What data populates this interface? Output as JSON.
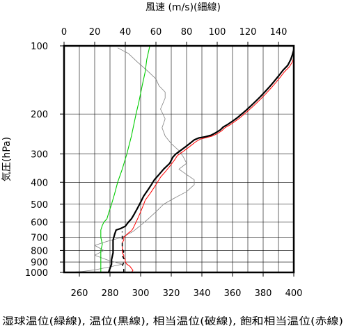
{
  "chart_data": {
    "type": "line",
    "top_axis_label": "風速 (m/s)(細線)",
    "left_axis_label": "気圧(hPa)",
    "bottom_caption": "湿球温位(緑線), 温位(黒線), 相当温位(破線), 飽和相当温位(赤線)",
    "temperature_axis": {
      "range": [
        250,
        400
      ],
      "ticks": [
        "260",
        "280",
        "300",
        "320",
        "340",
        "360",
        "380",
        "400"
      ],
      "tick_values": [
        260,
        280,
        300,
        320,
        340,
        360,
        380,
        400
      ]
    },
    "wind_axis": {
      "range": [
        0,
        150
      ],
      "ticks": [
        "0",
        "20",
        "40",
        "60",
        "80",
        "100",
        "120",
        "140"
      ],
      "tick_values": [
        0,
        20,
        40,
        60,
        80,
        100,
        120,
        140
      ]
    },
    "pressure_axis": {
      "scale": "log",
      "range": [
        1000,
        100
      ],
      "ticks": [
        "100",
        "200",
        "300",
        "400",
        "500",
        "600",
        "700",
        "800",
        "900",
        "1000"
      ],
      "tick_values": [
        100,
        200,
        300,
        400,
        500,
        600,
        700,
        800,
        900,
        1000
      ]
    },
    "grid": true,
    "series": [
      {
        "key": "wind_speed",
        "color": "#808080",
        "axis": "wind",
        "points": [
          [
            3,
            1000
          ],
          [
            12,
            990
          ],
          [
            20,
            975
          ],
          [
            30,
            945
          ],
          [
            38,
            920
          ],
          [
            28,
            880
          ],
          [
            20,
            840
          ],
          [
            26,
            800
          ],
          [
            20,
            760
          ],
          [
            28,
            730
          ],
          [
            38,
            700
          ],
          [
            45,
            660
          ],
          [
            50,
            620
          ],
          [
            55,
            580
          ],
          [
            60,
            540
          ],
          [
            65,
            500
          ],
          [
            72,
            470
          ],
          [
            80,
            440
          ],
          [
            85,
            410
          ],
          [
            85,
            390
          ],
          [
            80,
            370
          ],
          [
            75,
            350
          ],
          [
            80,
            330
          ],
          [
            78,
            310
          ],
          [
            75,
            290
          ],
          [
            70,
            270
          ],
          [
            66,
            250
          ],
          [
            64,
            230
          ],
          [
            66,
            210
          ],
          [
            63,
            190
          ],
          [
            66,
            170
          ],
          [
            66,
            160
          ],
          [
            62,
            150
          ],
          [
            60,
            140
          ],
          [
            55,
            130
          ],
          [
            48,
            118
          ],
          [
            42,
            108
          ],
          [
            35,
            102
          ]
        ]
      },
      {
        "key": "wet_bulb_potential_temperature",
        "color": "#00cc00",
        "axis": "temperature",
        "points": [
          [
            274,
            1000
          ],
          [
            274,
            950
          ],
          [
            274,
            900
          ],
          [
            274,
            850
          ],
          [
            274,
            800
          ],
          [
            275,
            750
          ],
          [
            274,
            700
          ],
          [
            274,
            650
          ],
          [
            275,
            620
          ],
          [
            276,
            600
          ],
          [
            278,
            580
          ],
          [
            279,
            550
          ],
          [
            281,
            500
          ],
          [
            283,
            450
          ],
          [
            285,
            400
          ],
          [
            288,
            350
          ],
          [
            291,
            300
          ],
          [
            294,
            250
          ],
          [
            297,
            200
          ],
          [
            299,
            175
          ],
          [
            301,
            150
          ],
          [
            303,
            130
          ],
          [
            304,
            115
          ],
          [
            306,
            100
          ]
        ]
      },
      {
        "key": "potential_temperature",
        "color": "#000000",
        "axis": "temperature",
        "points": [
          [
            279,
            1000
          ],
          [
            280,
            960
          ],
          [
            281,
            920
          ],
          [
            281,
            880
          ],
          [
            282,
            820
          ],
          [
            282,
            770
          ],
          [
            282,
            720
          ],
          [
            283,
            680
          ],
          [
            284,
            650
          ],
          [
            287,
            640
          ],
          [
            290,
            625
          ],
          [
            292,
            600
          ],
          [
            294,
            580
          ],
          [
            296,
            550
          ],
          [
            298,
            520
          ],
          [
            300,
            490
          ],
          [
            302,
            460
          ],
          [
            305,
            430
          ],
          [
            307,
            410
          ],
          [
            309,
            390
          ],
          [
            312,
            370
          ],
          [
            315,
            350
          ],
          [
            319,
            330
          ],
          [
            321,
            310
          ],
          [
            323,
            300
          ],
          [
            326,
            290
          ],
          [
            329,
            280
          ],
          [
            332,
            270
          ],
          [
            335,
            260
          ],
          [
            338,
            255
          ],
          [
            342,
            252
          ],
          [
            346,
            248
          ],
          [
            349,
            242
          ],
          [
            352,
            235
          ],
          [
            354,
            228
          ],
          [
            357,
            222
          ],
          [
            360,
            215
          ],
          [
            363,
            208
          ],
          [
            366,
            200
          ],
          [
            369,
            192
          ],
          [
            372,
            184
          ],
          [
            375,
            176
          ],
          [
            378,
            168
          ],
          [
            381,
            160
          ],
          [
            384,
            152
          ],
          [
            387,
            144
          ],
          [
            390,
            136
          ],
          [
            393,
            128
          ],
          [
            396,
            122
          ],
          [
            398,
            115
          ],
          [
            399,
            110
          ],
          [
            400,
            104
          ]
        ]
      },
      {
        "key": "equivalent_potential_temperature",
        "color": "#000000",
        "axis": "temperature",
        "dashed": true,
        "points": [
          [
            289,
            1000
          ],
          [
            289,
            970
          ],
          [
            288,
            940
          ],
          [
            289,
            900
          ],
          [
            289,
            870
          ],
          [
            288,
            840
          ],
          [
            289,
            810
          ],
          [
            288,
            790
          ],
          [
            288,
            760
          ],
          [
            288,
            740
          ],
          [
            288,
            720
          ],
          [
            288,
            700
          ],
          [
            288,
            680
          ],
          [
            288,
            660
          ]
        ]
      },
      {
        "key": "saturated_equivalent_potential_temperature",
        "color": "#ff0000",
        "axis": "temperature",
        "points": [
          [
            294,
            1000
          ],
          [
            295,
            980
          ],
          [
            294,
            960
          ],
          [
            293,
            940
          ],
          [
            291,
            920
          ],
          [
            290,
            900
          ],
          [
            290,
            880
          ],
          [
            289,
            860
          ],
          [
            289,
            840
          ],
          [
            288,
            820
          ],
          [
            288,
            800
          ],
          [
            288,
            780
          ],
          [
            288,
            760
          ],
          [
            288,
            740
          ],
          [
            289,
            720
          ],
          [
            289,
            700
          ],
          [
            290,
            690
          ],
          [
            291,
            680
          ],
          [
            292,
            670
          ],
          [
            294,
            655
          ],
          [
            295,
            640
          ],
          [
            296,
            620
          ],
          [
            297,
            600
          ],
          [
            298,
            580
          ],
          [
            299,
            560
          ],
          [
            300,
            540
          ],
          [
            301,
            520
          ],
          [
            302,
            500
          ],
          [
            303,
            480
          ],
          [
            305,
            460
          ],
          [
            307,
            440
          ],
          [
            309,
            420
          ],
          [
            311,
            400
          ],
          [
            313,
            380
          ],
          [
            316,
            360
          ],
          [
            319,
            340
          ],
          [
            322,
            320
          ],
          [
            324,
            305
          ],
          [
            327,
            295
          ],
          [
            330,
            285
          ],
          [
            333,
            275
          ],
          [
            336,
            265
          ],
          [
            339,
            258
          ],
          [
            343,
            254
          ],
          [
            347,
            250
          ],
          [
            350,
            244
          ],
          [
            353,
            237
          ],
          [
            355,
            230
          ],
          [
            358,
            224
          ],
          [
            361,
            217
          ],
          [
            364,
            210
          ],
          [
            367,
            202
          ],
          [
            370,
            194
          ],
          [
            373,
            186
          ],
          [
            376,
            178
          ],
          [
            379,
            170
          ],
          [
            382,
            162
          ],
          [
            385,
            154
          ],
          [
            388,
            146
          ],
          [
            391,
            138
          ],
          [
            394,
            130
          ],
          [
            397,
            124
          ],
          [
            399,
            118
          ],
          [
            400,
            112
          ]
        ]
      }
    ]
  }
}
